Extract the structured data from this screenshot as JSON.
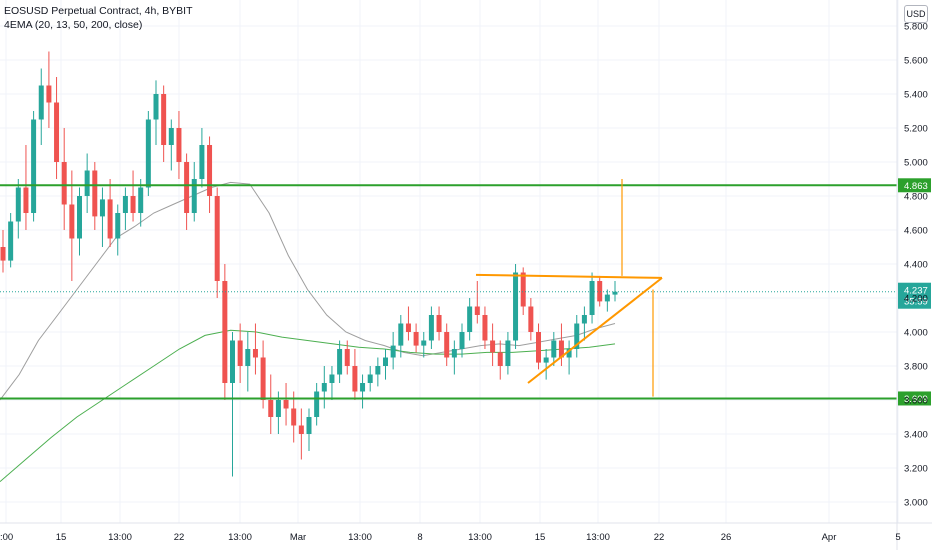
{
  "legend": {
    "title": "EOSUSD Perpetual Contract, 4h, BYBIT",
    "indicator": "4EMA (20, 13, 50, 200, close)"
  },
  "currency_button": "USD",
  "colors": {
    "up": "#26a69a",
    "down": "#ef5350",
    "level_line": "#2ca02c",
    "drawing": "#ff9800",
    "ema_gray": "#9e9e9e",
    "ema_green": "#4caf50",
    "last_price_badge": "#26a69a",
    "level_badge": "#2ca02c"
  },
  "chart_data": {
    "type": "candlestick",
    "symbol": "EOSUSD Perpetual Contract",
    "interval": "4h",
    "exchange": "BYBIT",
    "y_axis": {
      "ticks": [
        "3.000",
        "3.200",
        "3.400",
        "3.600",
        "3.800",
        "4.000",
        "4.200",
        "4.400",
        "4.600",
        "4.800",
        "5.000",
        "5.200",
        "5.400",
        "5.600",
        "5.800"
      ],
      "range": [
        2.85,
        5.85
      ],
      "unit": "USD"
    },
    "x_axis": {
      "ticks": [
        ":00",
        "15",
        "13:00",
        "22",
        "13:00",
        "Mar",
        "13:00",
        "8",
        "13:00",
        "15",
        "13:00",
        "22",
        "26",
        "Apr",
        "5"
      ]
    },
    "levels": [
      {
        "label": "4.863",
        "value": 4.863
      },
      {
        "label": "3.609",
        "value": 3.609
      }
    ],
    "last_price": {
      "label": "4.237",
      "value": 4.237,
      "countdown": "35:59"
    },
    "drawings": {
      "triangle_top": 4.33,
      "triangle_bottom_start": 3.7,
      "target_up_to": 4.9,
      "target_down_to": 3.62
    },
    "candles_ohlc": [
      [
        4.5,
        4.6,
        4.35,
        4.42
      ],
      [
        4.42,
        4.7,
        4.38,
        4.65
      ],
      [
        4.65,
        4.9,
        4.55,
        4.85
      ],
      [
        4.85,
        5.1,
        4.6,
        4.7
      ],
      [
        4.7,
        5.3,
        4.65,
        5.25
      ],
      [
        5.25,
        5.55,
        5.1,
        5.45
      ],
      [
        5.45,
        5.65,
        5.2,
        5.35
      ],
      [
        5.35,
        5.5,
        4.9,
        5.0
      ],
      [
        5.0,
        5.2,
        4.6,
        4.75
      ],
      [
        4.75,
        4.95,
        4.3,
        4.55
      ],
      [
        4.55,
        4.85,
        4.45,
        4.8
      ],
      [
        4.8,
        5.05,
        4.7,
        4.95
      ],
      [
        4.95,
        5.0,
        4.6,
        4.68
      ],
      [
        4.68,
        4.85,
        4.5,
        4.78
      ],
      [
        4.78,
        4.9,
        4.5,
        4.55
      ],
      [
        4.55,
        4.75,
        4.45,
        4.7
      ],
      [
        4.7,
        4.85,
        4.6,
        4.8
      ],
      [
        4.8,
        4.95,
        4.65,
        4.7
      ],
      [
        4.7,
        4.9,
        4.62,
        4.85
      ],
      [
        4.85,
        5.3,
        4.8,
        5.25
      ],
      [
        5.25,
        5.48,
        5.1,
        5.4
      ],
      [
        5.4,
        5.45,
        5.0,
        5.1
      ],
      [
        5.1,
        5.25,
        4.95,
        5.2
      ],
      [
        5.2,
        5.3,
        4.9,
        5.0
      ],
      [
        5.0,
        5.05,
        4.6,
        4.7
      ],
      [
        4.7,
        5.0,
        4.65,
        4.9
      ],
      [
        4.9,
        5.2,
        4.85,
        5.1
      ],
      [
        5.1,
        5.15,
        4.7,
        4.8
      ],
      [
        4.8,
        4.85,
        4.2,
        4.3
      ],
      [
        4.3,
        4.4,
        3.6,
        3.7
      ],
      [
        3.7,
        4.0,
        3.15,
        3.95
      ],
      [
        3.95,
        4.05,
        3.7,
        3.8
      ],
      [
        3.8,
        4.0,
        3.65,
        3.9
      ],
      [
        3.9,
        4.05,
        3.75,
        3.85
      ],
      [
        3.85,
        3.95,
        3.55,
        3.6
      ],
      [
        3.6,
        3.75,
        3.4,
        3.5
      ],
      [
        3.5,
        3.65,
        3.4,
        3.6
      ],
      [
        3.6,
        3.7,
        3.45,
        3.55
      ],
      [
        3.55,
        3.65,
        3.35,
        3.45
      ],
      [
        3.45,
        3.55,
        3.25,
        3.4
      ],
      [
        3.4,
        3.55,
        3.3,
        3.5
      ],
      [
        3.5,
        3.7,
        3.45,
        3.65
      ],
      [
        3.65,
        3.8,
        3.55,
        3.7
      ],
      [
        3.7,
        3.8,
        3.6,
        3.75
      ],
      [
        3.75,
        3.95,
        3.7,
        3.9
      ],
      [
        3.9,
        3.95,
        3.75,
        3.8
      ],
      [
        3.8,
        3.9,
        3.6,
        3.65
      ],
      [
        3.65,
        3.75,
        3.55,
        3.7
      ],
      [
        3.7,
        3.8,
        3.65,
        3.75
      ],
      [
        3.75,
        3.85,
        3.68,
        3.8
      ],
      [
        3.8,
        3.9,
        3.72,
        3.85
      ],
      [
        3.85,
        4.0,
        3.78,
        3.92
      ],
      [
        3.92,
        4.1,
        3.85,
        4.05
      ],
      [
        4.05,
        4.15,
        3.95,
        4.0
      ],
      [
        4.0,
        4.05,
        3.88,
        3.92
      ],
      [
        3.92,
        4.0,
        3.85,
        3.95
      ],
      [
        3.95,
        4.15,
        3.9,
        4.1
      ],
      [
        4.1,
        4.15,
        3.95,
        4.0
      ],
      [
        4.0,
        4.05,
        3.8,
        3.85
      ],
      [
        3.85,
        3.95,
        3.75,
        3.9
      ],
      [
        3.9,
        4.05,
        3.85,
        4.0
      ],
      [
        4.0,
        4.2,
        3.95,
        4.15
      ],
      [
        4.15,
        4.3,
        4.05,
        4.1
      ],
      [
        4.1,
        4.15,
        3.9,
        3.95
      ],
      [
        3.95,
        4.05,
        3.8,
        3.88
      ],
      [
        3.88,
        3.95,
        3.72,
        3.8
      ],
      [
        3.8,
        4.0,
        3.75,
        3.95
      ],
      [
        3.95,
        4.4,
        3.9,
        4.35
      ],
      [
        4.35,
        4.38,
        4.1,
        4.15
      ],
      [
        4.15,
        4.2,
        3.95,
        4.0
      ],
      [
        4.0,
        4.05,
        3.78,
        3.82
      ],
      [
        3.82,
        3.9,
        3.72,
        3.85
      ],
      [
        3.85,
        4.0,
        3.8,
        3.95
      ],
      [
        3.95,
        4.05,
        3.8,
        3.85
      ],
      [
        3.85,
        3.95,
        3.75,
        3.9
      ],
      [
        3.9,
        4.1,
        3.85,
        4.05
      ],
      [
        4.05,
        4.15,
        3.95,
        4.1
      ],
      [
        4.1,
        4.35,
        4.05,
        4.3
      ],
      [
        4.3,
        4.33,
        4.15,
        4.18
      ],
      [
        4.18,
        4.25,
        4.12,
        4.22
      ],
      [
        4.22,
        4.3,
        4.18,
        4.237
      ]
    ],
    "ema_gray_values": [
      3.6,
      3.75,
      3.95,
      4.1,
      4.25,
      4.4,
      4.55,
      4.62,
      4.7,
      4.75,
      4.8,
      4.85,
      4.88,
      4.87,
      4.7,
      4.45,
      4.25,
      4.1,
      4.0,
      3.95,
      3.92,
      3.88,
      3.86,
      3.88,
      3.9,
      3.92,
      3.93,
      3.92,
      3.94,
      3.96,
      3.98,
      4.02,
      4.05
    ],
    "ema_green_values": [
      3.12,
      3.25,
      3.38,
      3.5,
      3.6,
      3.7,
      3.8,
      3.9,
      3.98,
      4.01,
      4.0,
      3.97,
      3.95,
      3.93,
      3.91,
      3.9,
      3.88,
      3.87,
      3.87,
      3.88,
      3.88,
      3.89,
      3.9,
      3.91,
      3.93
    ]
  }
}
